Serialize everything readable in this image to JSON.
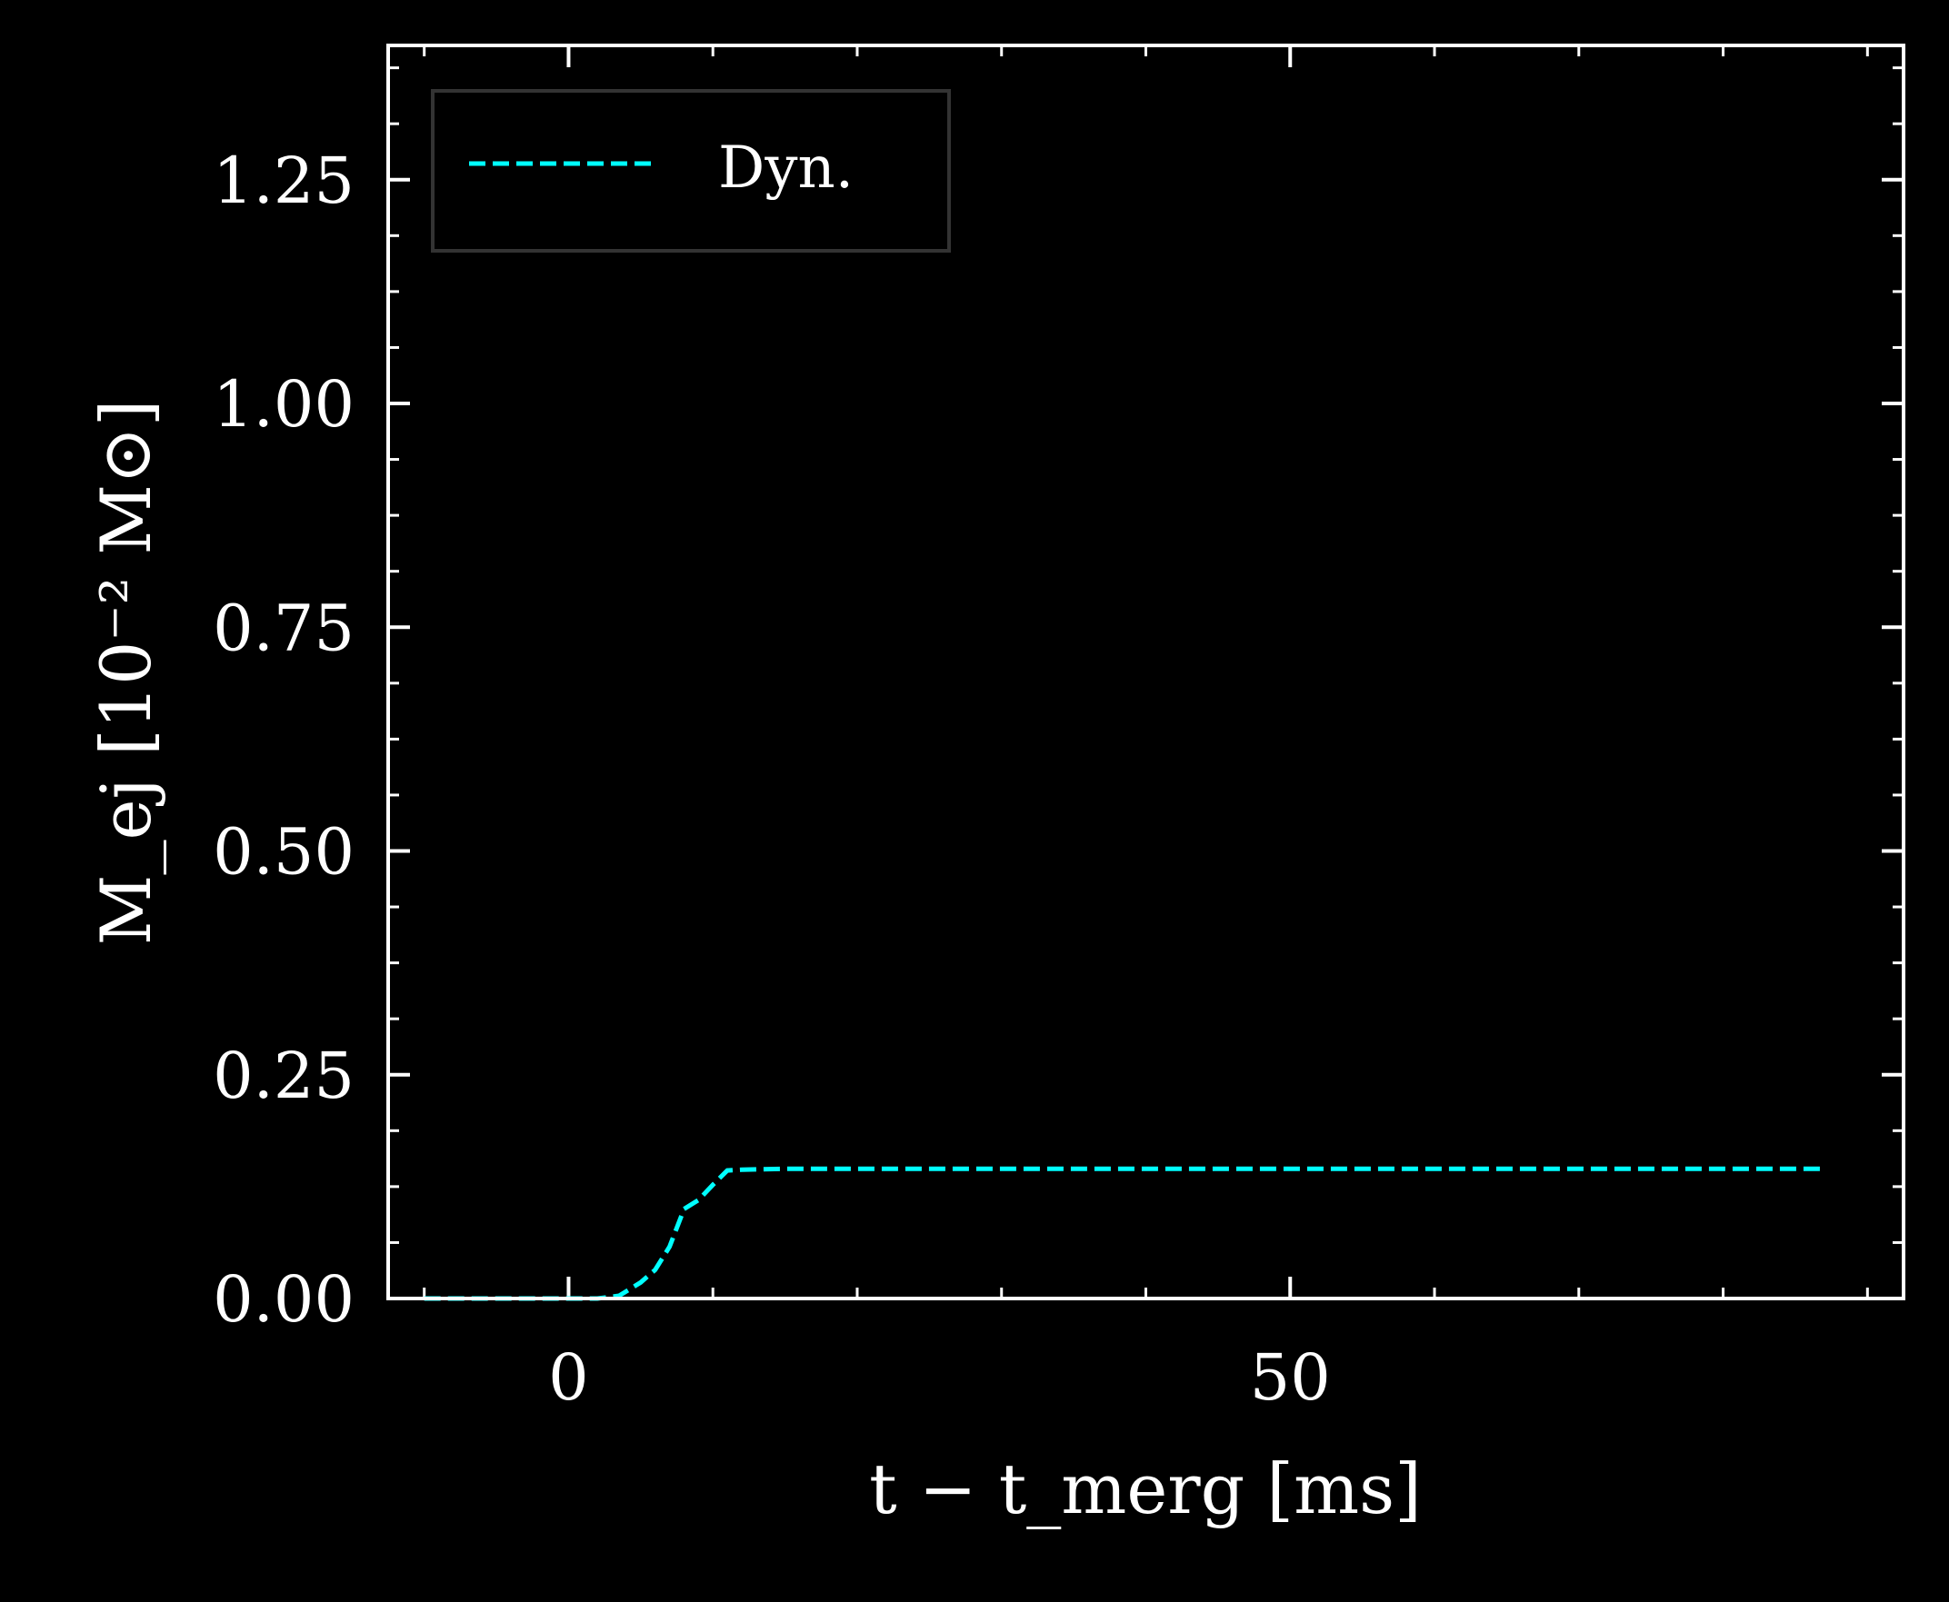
{
  "chart_data": {
    "type": "line",
    "xlabel": "t − t_merg [ms]",
    "ylabel": "M_ej [10⁻² M⊙]",
    "xlim": [
      -12.5,
      92.5
    ],
    "ylim": [
      0,
      1.4
    ],
    "xticks": [
      0,
      50
    ],
    "xtick_labels": [
      "0",
      "50"
    ],
    "yticks": [
      0,
      0.25,
      0.5,
      0.75,
      1.0,
      1.25
    ],
    "ytick_labels": [
      "0.00",
      "0.25",
      "0.50",
      "0.75",
      "1.00",
      "1.25"
    ],
    "grid": false,
    "legend_position": "top-left",
    "series": [
      {
        "name": "Dyn.",
        "color": "#00ffff",
        "linestyle": "dashed",
        "x": [
          -10,
          -5,
          0,
          2,
          3.5,
          5,
          6,
          7,
          8,
          9,
          10,
          11,
          12,
          15,
          20,
          30,
          40,
          50,
          60,
          70,
          80,
          87
        ],
        "y": [
          0,
          0,
          0,
          0,
          0.003,
          0.018,
          0.032,
          0.058,
          0.1,
          0.11,
          0.127,
          0.143,
          0.144,
          0.145,
          0.145,
          0.145,
          0.145,
          0.145,
          0.145,
          0.145,
          0.145,
          0.145
        ]
      }
    ]
  },
  "colors": {
    "background": "#000000",
    "axes": "#ffffff",
    "legend_border": "#333333"
  }
}
